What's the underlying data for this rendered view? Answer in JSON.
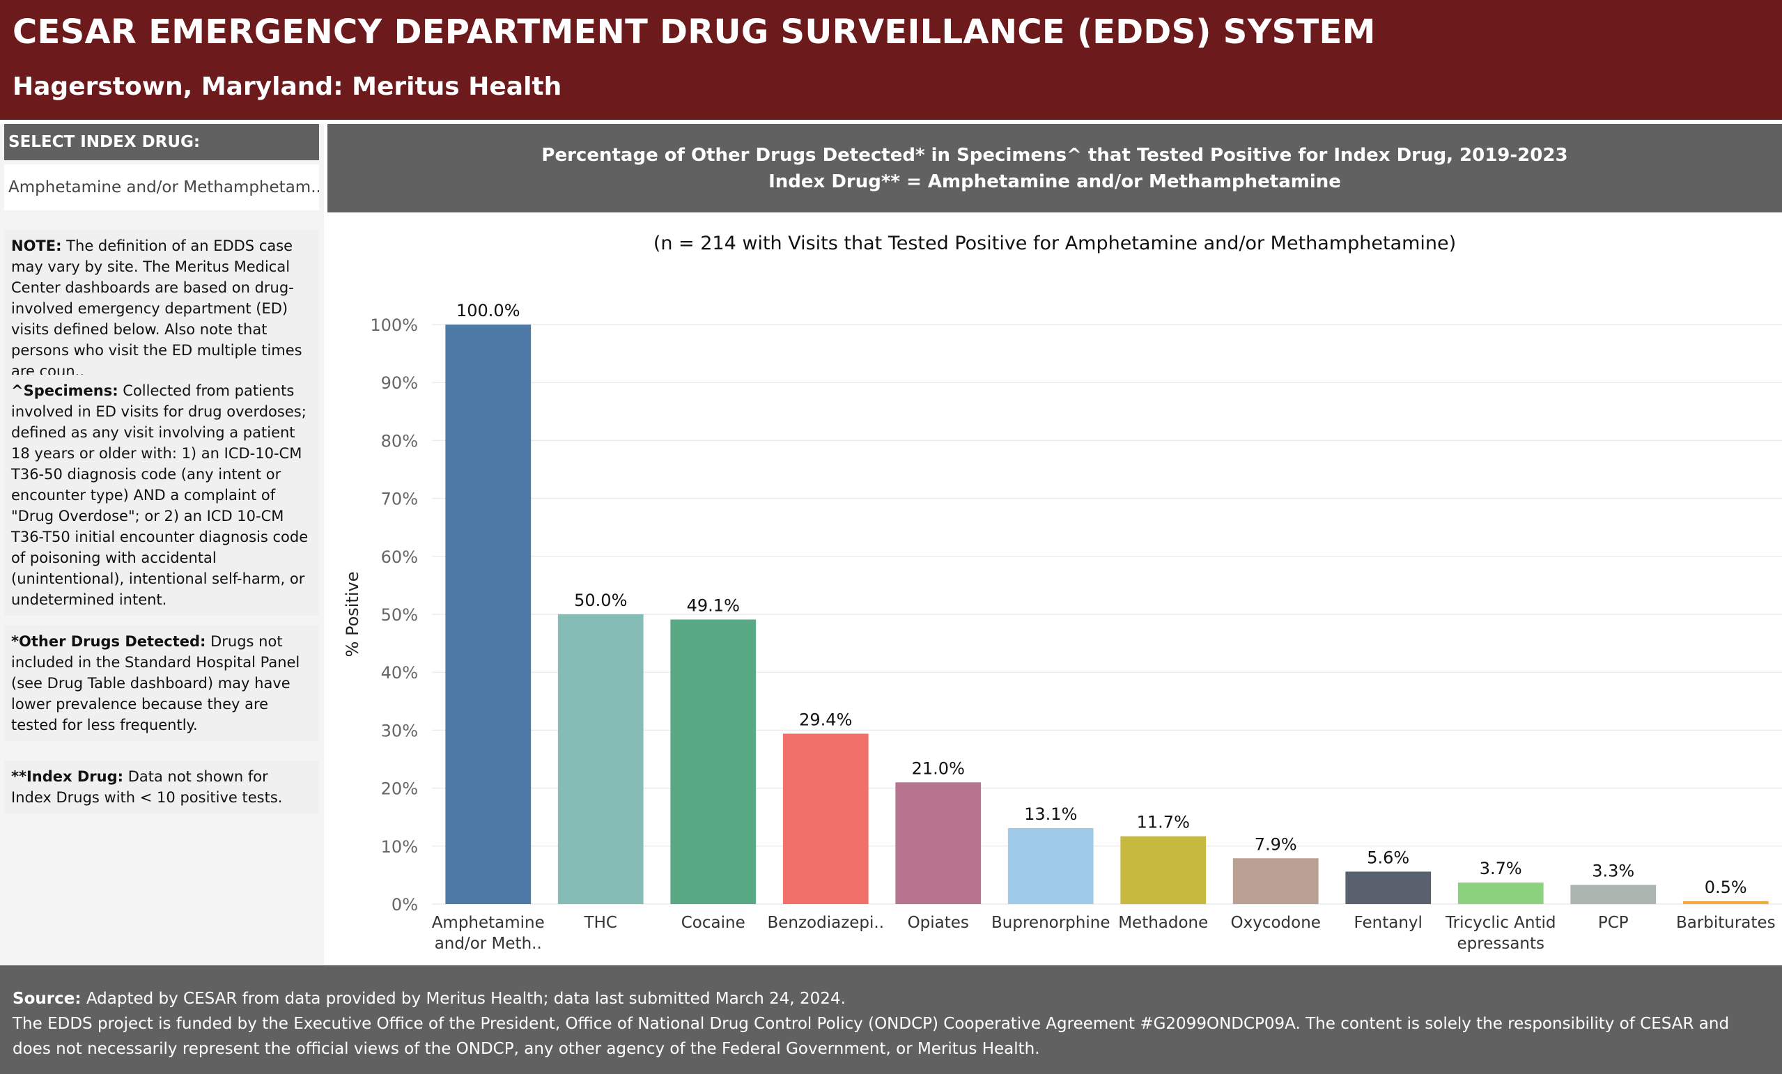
{
  "header": {
    "title": "CESAR EMERGENCY DEPARTMENT DRUG SURVEILLANCE (EDDS) SYSTEM",
    "subtitle": "Hagerstown, Maryland: Meritus Health"
  },
  "sidebar": {
    "select_label": "SELECT INDEX DRUG:",
    "select_value": "Amphetamine and/or Methamphetam..",
    "notes": [
      {
        "label": "NOTE:",
        "text": " The definition of an EDDS case may vary by site. The Meritus Medical Center dashboards are based on drug-involved emergency department (ED) visits defined below. Also note that persons who visit the ED multiple times are coun.."
      },
      {
        "label": "^Specimens:",
        "text": " Collected from patients involved in ED visits for drug overdoses; defined as any visit involving a patient 18 years or older with: 1) an ICD-10-CM T36-50 diagnosis code (any intent or encounter type) AND a complaint of \"Drug Overdose\"; or  2) an ICD 10-CM T36-T50 initial encounter diagnosis code of poisoning with accidental (unintentional), intentional self-harm, or undetermined intent."
      },
      {
        "label": "*Other Drugs Detected:",
        "text": " Drugs not included in the Standard Hospital Panel (see Drug Table dashboard) may have lower prevalence because they are tested for less frequently."
      },
      {
        "label": "**Index Drug:",
        "text": " Data not shown for Index Drugs with < 10 positive tests."
      }
    ]
  },
  "chart_header": {
    "line1": "Percentage of Other Drugs Detected* in Specimens^ that Tested Positive for Index Drug, 2019-2023",
    "line2": "Index Drug** = Amphetamine and/or Methamphetamine"
  },
  "chart_data": {
    "type": "bar",
    "title": "Percentage of Other Drugs Detected* in Specimens^ that Tested Positive for Index Drug, 2019-2023",
    "subtitle": "(n = 214 with Visits that Tested Positive for Amphetamine and/or Methamphetamine)",
    "ylabel": "% Positive",
    "ylim": [
      0,
      100
    ],
    "yticks": [
      "0%",
      "10%",
      "20%",
      "30%",
      "40%",
      "50%",
      "60%",
      "70%",
      "80%",
      "90%",
      "100%"
    ],
    "grid": true,
    "categories": [
      [
        "Amphetamine",
        "and/or Meth.."
      ],
      [
        "THC"
      ],
      [
        "Cocaine"
      ],
      [
        "Benzodiazepi.."
      ],
      [
        "Opiates"
      ],
      [
        "Buprenorphine"
      ],
      [
        "Methadone"
      ],
      [
        "Oxycodone"
      ],
      [
        "Fentanyl"
      ],
      [
        "Tricyclic Antid",
        "epressants"
      ],
      [
        "PCP"
      ],
      [
        "Barbiturates"
      ]
    ],
    "values": [
      100.0,
      50.0,
      49.1,
      29.4,
      21.0,
      13.1,
      11.7,
      7.9,
      5.6,
      3.7,
      3.3,
      0.5
    ],
    "value_labels": [
      "100.0%",
      "50.0%",
      "49.1%",
      "29.4%",
      "21.0%",
      "13.1%",
      "11.7%",
      "7.9%",
      "5.6%",
      "3.7%",
      "3.3%",
      "0.5%"
    ],
    "colors": [
      "#4e79a7",
      "#86bcb6",
      "#59a985",
      "#f1706a",
      "#b7748f",
      "#a0cbe8",
      "#c7b940",
      "#b9a092",
      "#59606e",
      "#8cd17d",
      "#a9b5ae",
      "#f2a93b"
    ]
  },
  "footer": {
    "source_label": "Source:",
    "source_text": " Adapted by CESAR from data provided by Meritus Health; data last submitted March 24, 2024.",
    "funding_text": "The EDDS project is funded by the Executive Office of the President, Office of National Drug Control Policy (ONDCP) Cooperative Agreement #G2099ONDCP09A. The content is solely the responsibility of CESAR and does not necessarily represent the official views of the ONDCP, any other agency of the Federal Government, or Meritus Health."
  }
}
